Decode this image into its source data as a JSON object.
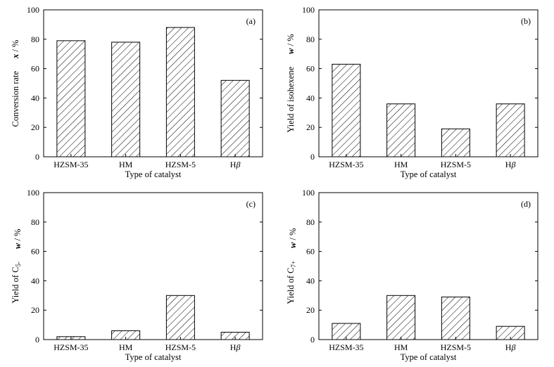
{
  "chart_data": [
    {
      "type": "bar",
      "panel_label": "(a)",
      "categories": [
        "HZSM-35",
        "HM",
        "HZSM-5",
        "Hβ"
      ],
      "values": [
        79,
        78,
        88,
        52
      ],
      "xlabel": "Type of catalyst",
      "ylabel": "Conversion rate",
      "ylabel_var": "x",
      "ylabel_sub": "",
      "ylabel_unit": " / %",
      "ylim": [
        0,
        100
      ],
      "yticks": [
        "0",
        "20",
        "40",
        "60",
        "80",
        "100"
      ],
      "pattern": "diagonal-hatch"
    },
    {
      "type": "bar",
      "panel_label": "(b)",
      "categories": [
        "HZSM-35",
        "HM",
        "HZSM-5",
        "Hβ"
      ],
      "values": [
        63,
        36,
        19,
        36
      ],
      "xlabel": "Type of catalyst",
      "ylabel": "Yield of isohexene",
      "ylabel_var": "w",
      "ylabel_sub": "",
      "ylabel_unit": " / %",
      "ylim": [
        0,
        100
      ],
      "yticks": [
        "0",
        "20",
        "40",
        "60",
        "80",
        "100"
      ],
      "pattern": "diagonal-hatch"
    },
    {
      "type": "bar",
      "panel_label": "(c)",
      "categories": [
        "HZSM-35",
        "HM",
        "HZSM-5",
        "Hβ"
      ],
      "values": [
        2,
        6,
        30,
        5
      ],
      "xlabel": "Type of catalyst",
      "ylabel": "Yield of C",
      "ylabel_var": "w",
      "ylabel_sub": "5-",
      "ylabel_unit": " / %",
      "ylim": [
        0,
        100
      ],
      "yticks": [
        "0",
        "20",
        "40",
        "60",
        "80",
        "100"
      ],
      "pattern": "diagonal-hatch"
    },
    {
      "type": "bar",
      "panel_label": "(d)",
      "categories": [
        "HZSM-35",
        "HM",
        "HZSM-5",
        "Hβ"
      ],
      "values": [
        11,
        30,
        29,
        9
      ],
      "xlabel": "Type of catalyst",
      "ylabel": "Yield of C",
      "ylabel_var": "w",
      "ylabel_sub": "7+",
      "ylabel_unit": " / %",
      "ylim": [
        0,
        100
      ],
      "yticks": [
        "0",
        "20",
        "40",
        "60",
        "80",
        "100"
      ],
      "pattern": "diagonal-hatch"
    }
  ]
}
